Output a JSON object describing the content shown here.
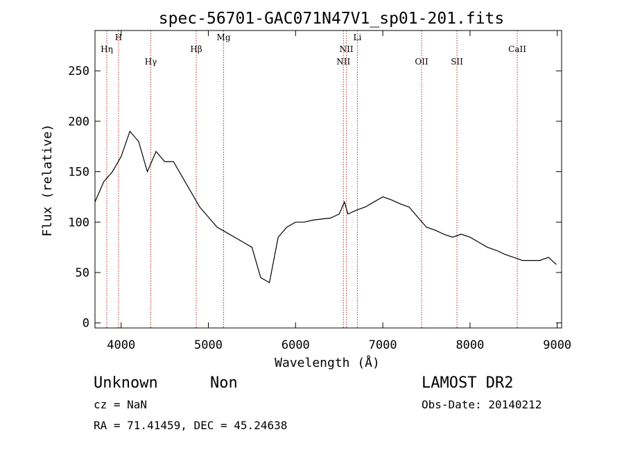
{
  "chart_data": {
    "type": "line",
    "title": "spec-56701-GAC071N47V1_sp01-201.fits",
    "xlabel": "Wavelength (Å)",
    "ylabel": "Flux (relative)",
    "xlim": [
      3700,
      9050
    ],
    "ylim": [
      -5,
      290
    ],
    "xticks": [
      4000,
      5000,
      6000,
      7000,
      8000,
      9000
    ],
    "yticks": [
      0,
      50,
      100,
      150,
      200,
      250
    ],
    "line_color": "#000000",
    "marker_color": "#b22222",
    "spectral_lines": [
      {
        "label": "Hη",
        "x": 3835
      },
      {
        "label": "H",
        "x": 3970
      },
      {
        "label": "Hγ",
        "x": 4340
      },
      {
        "label": "Hβ",
        "x": 4861
      },
      {
        "label": "Mg",
        "x": 5175
      },
      {
        "label": "NII",
        "x": 6548
      },
      {
        "label": "NII",
        "x": 6583
      },
      {
        "label": "Li",
        "x": 6708
      },
      {
        "label": "OII",
        "x": 7445
      },
      {
        "label": "SII",
        "x": 7850
      },
      {
        "label": "CaII",
        "x": 8542
      }
    ],
    "series": [
      {
        "x": [
          3700,
          3800,
          3900,
          4000,
          4100,
          4200,
          4300,
          4400,
          4500,
          4600,
          4700,
          4800,
          4900,
          5000,
          5100,
          5200,
          5300,
          5400,
          5500,
          5600,
          5700,
          5800,
          5900,
          6000,
          6100,
          6200,
          6300,
          6400,
          6500,
          6560,
          6600,
          6700,
          6800,
          6900,
          7000,
          7100,
          7200,
          7300,
          7400,
          7500,
          7600,
          7700,
          7800,
          7900,
          8000,
          8100,
          8200,
          8300,
          8400,
          8500,
          8600,
          8700,
          8800,
          8900,
          8990
        ],
        "y": [
          120,
          140,
          150,
          165,
          190,
          180,
          150,
          170,
          160,
          160,
          145,
          130,
          115,
          105,
          95,
          90,
          85,
          80,
          75,
          45,
          40,
          85,
          95,
          100,
          100,
          102,
          103,
          104,
          108,
          120,
          108,
          112,
          115,
          120,
          125,
          122,
          118,
          115,
          105,
          95,
          92,
          88,
          85,
          88,
          85,
          80,
          75,
          72,
          68,
          65,
          62,
          62,
          62,
          65,
          58
        ]
      }
    ]
  },
  "info": {
    "object_name": "Unknown",
    "object_class": "Non",
    "survey": "LAMOST DR2",
    "cz": "cz = NaN",
    "obs_date": "Obs-Date: 20140212",
    "coords": "RA =  71.41459, DEC =  45.24638"
  }
}
